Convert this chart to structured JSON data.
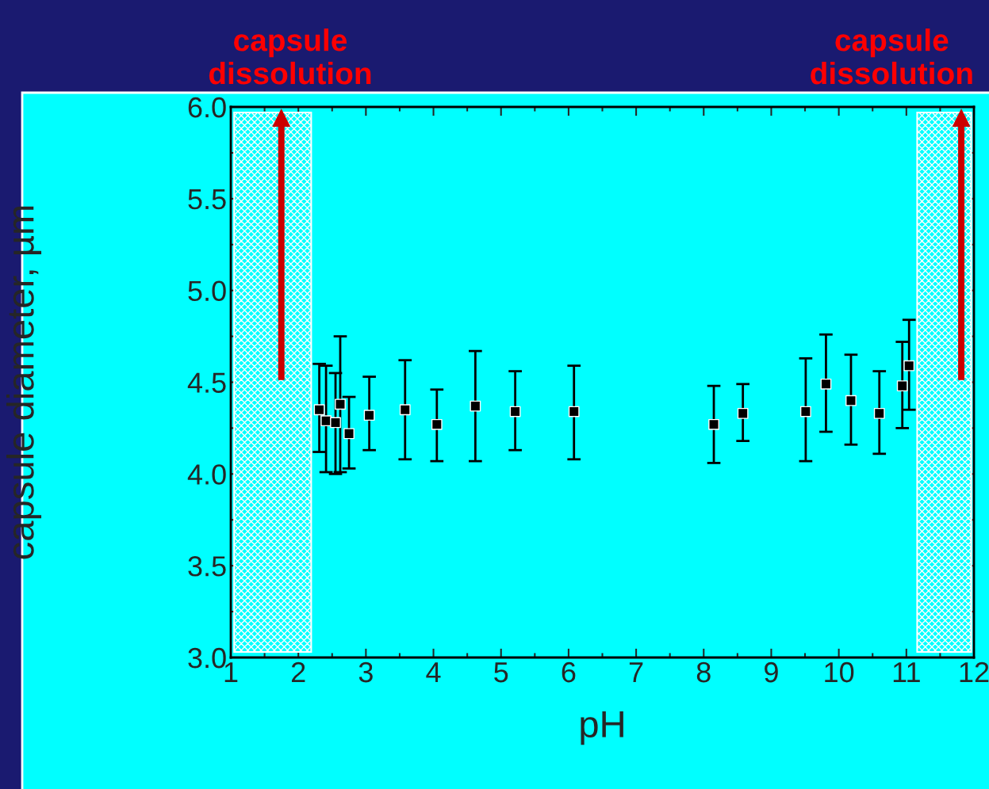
{
  "chart_data": {
    "type": "scatter",
    "xlabel": "pH",
    "ylabel": "capsule diameter, µm",
    "x": [
      2.31,
      2.41,
      2.55,
      2.62,
      2.75,
      3.05,
      3.58,
      4.05,
      4.62,
      5.21,
      6.08,
      8.15,
      8.58,
      9.51,
      9.81,
      10.18,
      10.6,
      10.94,
      11.04
    ],
    "series": [
      {
        "color": "#000000",
        "values": [
          4.35,
          4.29,
          4.28,
          4.38,
          4.22,
          4.32,
          4.35,
          4.27,
          4.37,
          4.34,
          4.34,
          4.27,
          4.33,
          4.34,
          4.49,
          4.4,
          4.33,
          4.48,
          4.59
        ],
        "errors": [
          [
            4.12,
            4.6
          ],
          [
            4.01,
            4.59
          ],
          [
            4.0,
            4.55
          ],
          [
            4.01,
            4.75
          ],
          [
            4.03,
            4.42
          ],
          [
            4.13,
            4.53
          ],
          [
            4.08,
            4.62
          ],
          [
            4.07,
            4.46
          ],
          [
            4.07,
            4.67
          ],
          [
            4.13,
            4.56
          ],
          [
            4.08,
            4.59
          ],
          [
            4.06,
            4.48
          ],
          [
            4.18,
            4.49
          ],
          [
            4.07,
            4.63
          ],
          [
            4.23,
            4.76
          ],
          [
            4.16,
            4.65
          ],
          [
            4.11,
            4.56
          ],
          [
            4.25,
            4.72
          ],
          [
            4.35,
            4.84
          ]
        ]
      }
    ],
    "marker": "square",
    "xlim": [
      1,
      12
    ],
    "xticks": [
      1,
      2,
      3,
      4,
      5,
      6,
      7,
      8,
      9,
      10,
      11,
      12
    ],
    "ylim": [
      3.0,
      6.0
    ],
    "yticks": [
      {
        "value": 3.0,
        "label": "3.0"
      },
      {
        "value": 3.5,
        "label": "3.5"
      },
      {
        "value": 4.0,
        "label": "4.0"
      },
      {
        "value": 4.5,
        "label": "4.5"
      },
      {
        "value": 5.0,
        "label": "5.0"
      },
      {
        "value": 5.5,
        "label": "5.5"
      },
      {
        "value": 6.0,
        "label": "6.0"
      }
    ],
    "bands": [
      {
        "axis": "x",
        "from": 1.05,
        "to": 2.19,
        "color": "#ffffff"
      },
      {
        "axis": "x",
        "from": 11.16,
        "to": 11.96,
        "color": "#ffffff"
      }
    ],
    "annotations": [
      "capsule\ndissolution",
      "capsule\ndissolution"
    ],
    "grid": false,
    "legend": false
  }
}
